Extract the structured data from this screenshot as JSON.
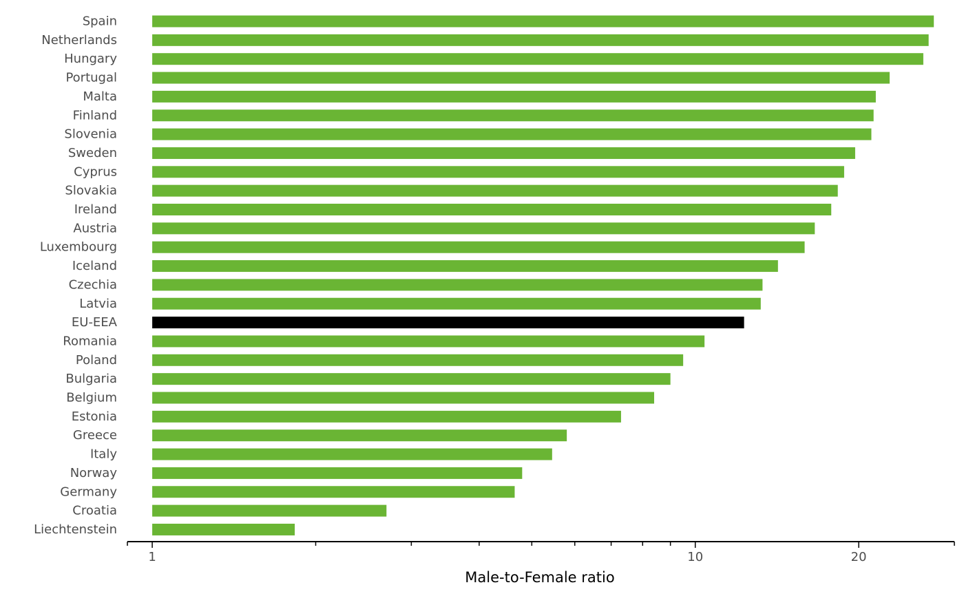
{
  "chart_data": {
    "type": "bar",
    "orientation": "horizontal",
    "xlabel": "Male-to-Female ratio",
    "x_scale": "log",
    "xlim": [
      0.9,
      30
    ],
    "x_ticks": [
      1,
      10,
      20
    ],
    "x_tick_labels": [
      "1",
      "10",
      "20"
    ],
    "grid": false,
    "legend": "none",
    "colors": {
      "default": "#6ab534",
      "highlight": "#000000",
      "axis": "#000000"
    },
    "highlight_category": "EU-EEA",
    "categories": [
      "Spain",
      "Netherlands",
      "Hungary",
      "Portugal",
      "Malta",
      "Finland",
      "Slovenia",
      "Sweden",
      "Cyprus",
      "Slovakia",
      "Ireland",
      "Austria",
      "Luxembourg",
      "Iceland",
      "Czechia",
      "Latvia",
      "EU-EEA",
      "Romania",
      "Poland",
      "Bulgaria",
      "Belgium",
      "Estonia",
      "Greece",
      "Italy",
      "Norway",
      "Germany",
      "Croatia",
      "Liechtenstein"
    ],
    "values": [
      27.5,
      26.9,
      26.3,
      22.8,
      21.5,
      21.3,
      21.1,
      19.7,
      18.8,
      18.3,
      17.8,
      16.6,
      15.9,
      14.2,
      13.3,
      13.2,
      12.3,
      10.4,
      9.5,
      9.0,
      8.4,
      7.3,
      5.8,
      5.45,
      4.8,
      4.65,
      2.7,
      1.83
    ]
  }
}
